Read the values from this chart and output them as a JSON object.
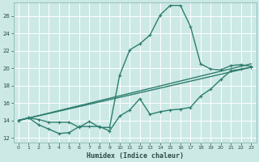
{
  "xlabel": "Humidex (Indice chaleur)",
  "background_color": "#cce9e6",
  "grid_color": "#b8d8d5",
  "line_color": "#2d7d6e",
  "xlim": [
    -0.5,
    23.5
  ],
  "ylim": [
    11.5,
    27.5
  ],
  "xticks": [
    0,
    1,
    2,
    3,
    4,
    5,
    6,
    7,
    8,
    9,
    10,
    11,
    12,
    13,
    14,
    15,
    16,
    17,
    18,
    19,
    20,
    21,
    22,
    23
  ],
  "yticks": [
    12,
    14,
    16,
    18,
    20,
    22,
    24,
    26
  ],
  "series": [
    {
      "x": [
        0,
        1,
        2,
        3,
        4,
        5,
        6,
        7,
        8,
        9,
        10,
        11,
        12,
        13,
        14,
        15,
        16,
        17,
        18,
        19,
        20,
        21,
        22,
        23
      ],
      "y": [
        14.0,
        14.3,
        14.1,
        13.8,
        13.8,
        13.8,
        13.2,
        13.9,
        13.2,
        13.2,
        19.2,
        22.1,
        22.8,
        23.8,
        26.1,
        27.2,
        27.2,
        24.8,
        20.5,
        19.9,
        19.8,
        20.3,
        20.4,
        20.2
      ],
      "marker": "+",
      "markersize": 3.5,
      "linewidth": 1.0
    },
    {
      "x": [
        0,
        1,
        2,
        3,
        4,
        5,
        6,
        7,
        8,
        9,
        10,
        11,
        12,
        13,
        14,
        15,
        16,
        17,
        18,
        19,
        20,
        21,
        22,
        23
      ],
      "y": [
        14.0,
        14.3,
        13.5,
        13.0,
        12.5,
        12.6,
        13.3,
        13.3,
        13.3,
        12.8,
        14.5,
        15.2,
        16.5,
        14.7,
        15.0,
        15.2,
        15.3,
        15.5,
        16.8,
        17.6,
        18.7,
        19.7,
        19.9,
        20.1
      ],
      "marker": "+",
      "markersize": 3.5,
      "linewidth": 1.0
    },
    {
      "x": [
        0,
        23
      ],
      "y": [
        14.0,
        20.5
      ],
      "marker": null,
      "markersize": 0,
      "linewidth": 1.0
    },
    {
      "x": [
        0,
        23
      ],
      "y": [
        14.0,
        20.1
      ],
      "marker": null,
      "markersize": 0,
      "linewidth": 1.0
    }
  ]
}
